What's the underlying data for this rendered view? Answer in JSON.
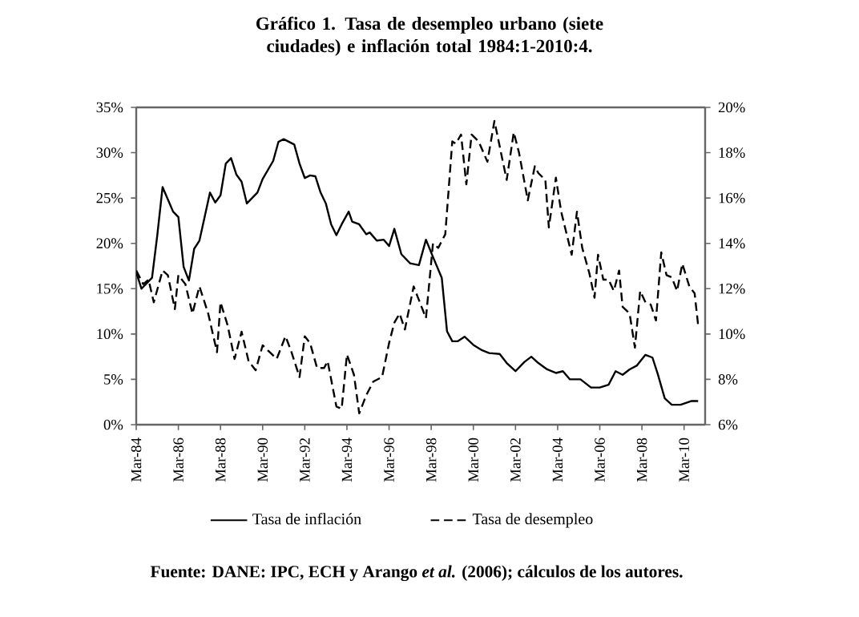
{
  "chart_data": {
    "type": "line",
    "title": "Gráfico 1. Tasa de desempleo urbano (siete ciudades) e inflación total 1984:1-2010:4.",
    "annotations": [
      "Fuente: DANE: IPC, ECH y Arango *et al.* (2006); cálculos de los autores."
    ],
    "xlim": [
      "1984-03",
      "2011-03"
    ],
    "xticks": [
      {
        "value": "1984-03",
        "label": "Mar-84"
      },
      {
        "value": "1986-03",
        "label": "Mar-86"
      },
      {
        "value": "1988-03",
        "label": "Mar-88"
      },
      {
        "value": "1990-03",
        "label": "Mar-90"
      },
      {
        "value": "1992-03",
        "label": "Mar-92"
      },
      {
        "value": "1994-03",
        "label": "Mar-94"
      },
      {
        "value": "1996-03",
        "label": "Mar-96"
      },
      {
        "value": "1998-03",
        "label": "Mar-98"
      },
      {
        "value": "2000-03",
        "label": "Mar-00"
      },
      {
        "value": "2002-03",
        "label": "Mar-02"
      },
      {
        "value": "2004-03",
        "label": "Mar-04"
      },
      {
        "value": "2006-03",
        "label": "Mar-06"
      },
      {
        "value": "2008-03",
        "label": "Mar-08"
      },
      {
        "value": "2010-03",
        "label": "Mar-10"
      }
    ],
    "ylim": [
      0,
      35
    ],
    "yticks": [
      {
        "value": 0,
        "label": "0%"
      },
      {
        "value": 5,
        "label": "5%"
      },
      {
        "value": 10,
        "label": "10%"
      },
      {
        "value": 15,
        "label": "15%"
      },
      {
        "value": 20,
        "label": "20%"
      },
      {
        "value": 25,
        "label": "25%"
      },
      {
        "value": 30,
        "label": "30%"
      },
      {
        "value": 35,
        "label": "35%"
      }
    ],
    "y2lim": [
      6,
      20
    ],
    "y2ticks": [
      {
        "value": 6,
        "label": "6%"
      },
      {
        "value": 8,
        "label": "8%"
      },
      {
        "value": 10,
        "label": "10%"
      },
      {
        "value": 12,
        "label": "12%"
      },
      {
        "value": 14,
        "label": "14%"
      },
      {
        "value": 16,
        "label": "16%"
      },
      {
        "value": 18,
        "label": "18%"
      },
      {
        "value": 20,
        "label": "20%"
      }
    ],
    "grid": false,
    "legend": "bottom",
    "marker": "none",
    "series": [
      {
        "name": "Tasa de inflación",
        "color": "#000000",
        "line_style": "solid",
        "x": [
          "1984-03",
          "1984-06",
          "1984-12",
          "1985-03",
          "1985-06",
          "1985-12",
          "1986-03",
          "1986-06",
          "1986-09",
          "1986-12",
          "1987-03",
          "1987-09",
          "1987-12",
          "1988-03",
          "1988-06",
          "1988-09",
          "1988-12",
          "1989-03",
          "1989-06",
          "1989-12",
          "1990-03",
          "1990-09",
          "1990-12",
          "1991-03",
          "1991-09",
          "1991-12",
          "1992-03",
          "1992-06",
          "1992-09",
          "1992-12",
          "1993-03",
          "1993-06",
          "1993-09",
          "1993-12",
          "1994-04",
          "1994-06",
          "1994-10",
          "1995-02",
          "1995-04",
          "1995-08",
          "1995-12",
          "1996-03",
          "1996-06",
          "1996-10",
          "1997-03",
          "1997-08",
          "1997-12",
          "1998-04",
          "1998-09",
          "1998-12",
          "1999-03",
          "1999-06",
          "1999-10",
          "2000-03",
          "2000-08",
          "2000-12",
          "2001-06",
          "2001-10",
          "2002-03",
          "2002-08",
          "2002-12",
          "2003-04",
          "2003-09",
          "2004-02",
          "2004-06",
          "2004-10",
          "2005-04",
          "2005-10",
          "2006-03",
          "2006-08",
          "2006-12",
          "2007-04",
          "2007-08",
          "2007-12",
          "2008-05",
          "2008-09",
          "2008-12",
          "2009-04",
          "2009-08",
          "2010-01",
          "2010-07",
          "2010-11"
        ],
        "values": [
          16.8,
          15.0,
          16.2,
          20.9,
          26.2,
          23.5,
          22.9,
          17.4,
          15.9,
          19.4,
          20.3,
          25.6,
          24.5,
          25.3,
          28.8,
          29.4,
          27.6,
          26.8,
          24.4,
          25.6,
          27.1,
          29.1,
          31.2,
          31.5,
          30.9,
          28.8,
          27.2,
          27.5,
          27.4,
          25.6,
          24.4,
          22.1,
          20.9,
          22.1,
          23.5,
          22.4,
          22.1,
          21.0,
          21.2,
          20.3,
          20.4,
          19.7,
          21.6,
          18.8,
          17.8,
          17.6,
          20.4,
          18.5,
          16.2,
          10.3,
          9.2,
          9.2,
          9.7,
          8.8,
          8.2,
          7.9,
          7.8,
          6.8,
          5.9,
          6.9,
          7.5,
          6.8,
          6.1,
          5.7,
          5.9,
          5.0,
          5.0,
          4.1,
          4.1,
          4.4,
          5.9,
          5.5,
          6.1,
          6.5,
          7.7,
          7.4,
          5.6,
          2.9,
          2.2,
          2.2,
          2.6,
          2.6
        ]
      },
      {
        "name": "Tasa de desempleo",
        "color": "#000000",
        "line_style": "dashed",
        "axis": "y2",
        "x": [
          "1984-03",
          "1984-07",
          "1984-10",
          "1985-01",
          "1985-06",
          "1985-09",
          "1986-01",
          "1986-03",
          "1986-07",
          "1986-11",
          "1987-03",
          "1987-08",
          "1988-01",
          "1988-03",
          "1988-07",
          "1988-11",
          "1989-03",
          "1989-07",
          "1989-11",
          "1990-03",
          "1990-07",
          "1990-11",
          "1991-04",
          "1991-07",
          "1991-12",
          "1992-03",
          "1992-06",
          "1992-10",
          "1993-02",
          "1993-04",
          "1993-09",
          "1993-12",
          "1994-03",
          "1994-07",
          "1994-10",
          "1995-02",
          "1995-06",
          "1995-11",
          "1996-03",
          "1996-06",
          "1996-09",
          "1996-12",
          "1997-05",
          "1997-08",
          "1997-12",
          "1998-04",
          "1998-07",
          "1998-11",
          "1999-03",
          "1999-05",
          "1999-08",
          "1999-11",
          "2000-02",
          "2000-06",
          "2000-11",
          "2001-03",
          "2001-07",
          "2001-10",
          "2002-02",
          "2002-05",
          "2002-10",
          "2003-02",
          "2003-04",
          "2003-08",
          "2003-10",
          "2004-02",
          "2004-05",
          "2004-11",
          "2005-02",
          "2005-05",
          "2005-09",
          "2005-12",
          "2006-02",
          "2006-05",
          "2006-08",
          "2006-11",
          "2007-02",
          "2007-04",
          "2007-08",
          "2007-11",
          "2008-02",
          "2008-05",
          "2008-08",
          "2008-11",
          "2009-02",
          "2009-05",
          "2009-08",
          "2009-11",
          "2010-02",
          "2010-06",
          "2010-09",
          "2010-11"
        ],
        "values": [
          12.8,
          12.2,
          12.4,
          11.4,
          12.8,
          12.6,
          11.1,
          12.6,
          12.2,
          10.9,
          12.1,
          10.9,
          9.2,
          11.4,
          10.4,
          8.9,
          10.1,
          8.8,
          8.4,
          9.5,
          9.2,
          8.9,
          9.9,
          9.3,
          8.1,
          9.9,
          9.6,
          8.5,
          8.5,
          8.8,
          6.8,
          6.7,
          9.1,
          8.2,
          6.5,
          7.3,
          7.9,
          8.1,
          9.6,
          10.5,
          10.9,
          10.2,
          12.1,
          11.5,
          10.7,
          14.0,
          13.8,
          14.4,
          18.5,
          18.4,
          18.8,
          16.6,
          18.8,
          18.5,
          17.6,
          19.4,
          17.9,
          16.8,
          18.9,
          18.0,
          15.9,
          17.4,
          17.1,
          16.8,
          14.7,
          16.9,
          15.4,
          13.5,
          15.4,
          13.8,
          12.7,
          11.6,
          13.5,
          12.4,
          12.4,
          11.9,
          12.8,
          11.2,
          10.9,
          9.4,
          11.9,
          11.4,
          11.3,
          10.6,
          13.6,
          12.6,
          12.5,
          11.9,
          13.1,
          12.1,
          11.8,
          10.4
        ]
      }
    ]
  }
}
